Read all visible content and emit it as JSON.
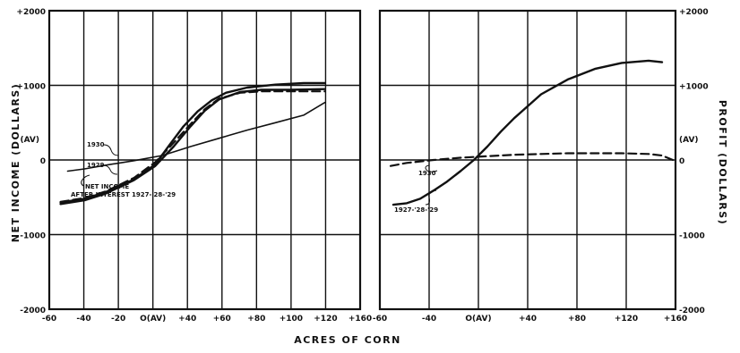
{
  "chart_data": [
    {
      "type": "line",
      "panel": "left",
      "xlabel": "ACRES OF CORN",
      "ylabel": "NET INCOME (DOLLARS)",
      "xlim": [
        -60,
        160
      ],
      "ylim": [
        -2000,
        2000
      ],
      "x_ticks": [
        "-60",
        "-40",
        "-20",
        "O(AV)",
        "+40",
        "+60",
        "+80",
        "+100",
        "+120",
        "+160"
      ],
      "y_ticks": [
        "+2000",
        "+1000",
        "0",
        "-1000",
        "-2000"
      ],
      "y_zero_label": "(AV)",
      "grid": true,
      "series": [
        {
          "name": "1930",
          "style": "solid-thin",
          "points": [
            [
              -47,
              -150
            ],
            [
              -35,
              -120
            ],
            [
              -20,
              -70
            ],
            [
              0,
              -10
            ],
            [
              20,
              60
            ],
            [
              40,
              180
            ],
            [
              60,
              290
            ],
            [
              80,
              400
            ],
            [
              100,
              500
            ],
            [
              120,
              600
            ],
            [
              135,
              770
            ]
          ]
        },
        {
          "name": "1929",
          "style": "solid",
          "points": [
            [
              -52,
              -570
            ],
            [
              -35,
              -520
            ],
            [
              -20,
              -430
            ],
            [
              0,
              -260
            ],
            [
              15,
              -60
            ],
            [
              25,
              200
            ],
            [
              35,
              450
            ],
            [
              45,
              650
            ],
            [
              55,
              800
            ],
            [
              65,
              900
            ],
            [
              80,
              970
            ],
            [
              100,
              1010
            ],
            [
              120,
              1030
            ],
            [
              135,
              1030
            ]
          ]
        },
        {
          "name": "NET INCOME AFTER INTEREST 1927-'28-'29",
          "style": "dashed",
          "points": [
            [
              -52,
              -560
            ],
            [
              -35,
              -510
            ],
            [
              -20,
              -420
            ],
            [
              0,
              -240
            ],
            [
              15,
              -30
            ],
            [
              28,
              230
            ],
            [
              40,
              480
            ],
            [
              50,
              680
            ],
            [
              60,
              820
            ],
            [
              75,
              900
            ],
            [
              90,
              920
            ],
            [
              110,
              920
            ],
            [
              135,
              920
            ]
          ]
        },
        {
          "name": "",
          "style": "solid",
          "points": [
            [
              -52,
              -590
            ],
            [
              -35,
              -540
            ],
            [
              -20,
              -450
            ],
            [
              0,
              -270
            ],
            [
              15,
              -80
            ],
            [
              28,
              180
            ],
            [
              40,
              450
            ],
            [
              50,
              660
            ],
            [
              60,
              810
            ],
            [
              75,
              910
            ],
            [
              90,
              940
            ],
            [
              110,
              940
            ],
            [
              135,
              950
            ]
          ]
        }
      ],
      "annotations": [
        "1930",
        "1929",
        "NET INCOME",
        "AFTER INTEREST 1927-'28-'29"
      ]
    },
    {
      "type": "line",
      "panel": "right",
      "xlabel": "ACRES OF CORN",
      "ylabel": "PROFIT (DOLLARS)",
      "xlim": [
        -60,
        160
      ],
      "ylim": [
        -2000,
        2000
      ],
      "x_ticks": [
        "-60",
        "-40",
        "O(AV)",
        "+40",
        "+80",
        "+120",
        "+160"
      ],
      "y_ticks": [
        "+2000",
        "+1000",
        "0",
        "-1000",
        "-2000"
      ],
      "y_zero_label": "(AV)",
      "grid": true,
      "series": [
        {
          "name": "1930",
          "style": "dashed",
          "points": [
            [
              -52,
              -80
            ],
            [
              -40,
              -40
            ],
            [
              -20,
              0
            ],
            [
              0,
              30
            ],
            [
              20,
              50
            ],
            [
              40,
              70
            ],
            [
              60,
              80
            ],
            [
              80,
              90
            ],
            [
              100,
              90
            ],
            [
              120,
              90
            ],
            [
              140,
              80
            ],
            [
              150,
              60
            ],
            [
              158,
              0
            ]
          ]
        },
        {
          "name": "1927-'28-'29",
          "style": "solid",
          "points": [
            [
              -50,
              -600
            ],
            [
              -40,
              -580
            ],
            [
              -30,
              -520
            ],
            [
              -20,
              -410
            ],
            [
              -10,
              -290
            ],
            [
              0,
              -150
            ],
            [
              10,
              0
            ],
            [
              20,
              180
            ],
            [
              30,
              380
            ],
            [
              40,
              560
            ],
            [
              60,
              880
            ],
            [
              80,
              1080
            ],
            [
              100,
              1220
            ],
            [
              120,
              1300
            ],
            [
              140,
              1330
            ],
            [
              150,
              1310
            ]
          ]
        }
      ],
      "annotations": [
        "1930",
        "1927-'28-'29"
      ]
    }
  ],
  "labels": {
    "xlabel": "ACRES OF CORN",
    "ylabel_left": "NET INCOME (DOLLARS)",
    "ylabel_right": "PROFIT (DOLLARS)",
    "left_zero": "(AV)",
    "right_zero": "(AV)",
    "ann_1930_left": "1930",
    "ann_1929_left": "1929",
    "ann_net_income_1": "NET INCOME",
    "ann_net_income_2": "AFTER INTEREST 1927-'28-'29",
    "ann_1930_right": "1930",
    "ann_192729_right": "1927-'28-'29"
  }
}
